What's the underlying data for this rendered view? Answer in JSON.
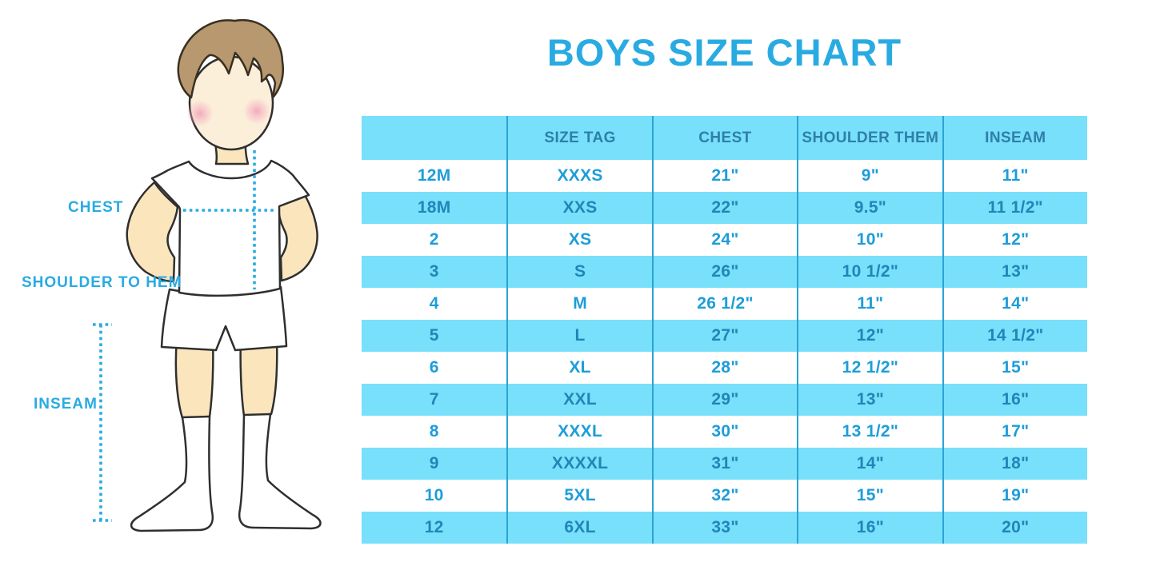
{
  "title": "BOYS SIZE CHART",
  "figure": {
    "labels": {
      "chest": "CHEST",
      "shoulder_to_hem": "SHOULDER TO HEM",
      "inseam": "INSEAM"
    }
  },
  "chart_data": {
    "type": "table",
    "title": "BOYS SIZE CHART",
    "columns": [
      "",
      "SIZE TAG",
      "CHEST",
      "SHOULDER THEM",
      "INSEAM"
    ],
    "rows": [
      [
        "12M",
        "XXXS",
        "21\"",
        "9\"",
        "11\""
      ],
      [
        "18M",
        "XXS",
        "22\"",
        "9.5\"",
        "11 1/2\""
      ],
      [
        "2",
        "XS",
        "24\"",
        "10\"",
        "12\""
      ],
      [
        "3",
        "S",
        "26\"",
        "10 1/2\"",
        "13\""
      ],
      [
        "4",
        "M",
        "26 1/2\"",
        "11\"",
        "14\""
      ],
      [
        "5",
        "L",
        "27\"",
        "12\"",
        "14 1/2\""
      ],
      [
        "6",
        "XL",
        "28\"",
        "12 1/2\"",
        "15\""
      ],
      [
        "7",
        "XXL",
        "29\"",
        "13\"",
        "16\""
      ],
      [
        "8",
        "XXXL",
        "30\"",
        "13 1/2\"",
        "17\""
      ],
      [
        "9",
        "XXXXL",
        "31\"",
        "14\"",
        "18\""
      ],
      [
        "10",
        "5XL",
        "32\"",
        "15\"",
        "19\""
      ],
      [
        "12",
        "6XL",
        "33\"",
        "16\"",
        "20\""
      ]
    ],
    "layout": {
      "header_background": "#78E0FA",
      "alternating_rows": true,
      "grid": "vertical-dividers-only"
    }
  },
  "colors": {
    "accent_blue": "#29ABE2",
    "row_alt_cyan": "#78E0FA",
    "header_text": "#2E7FA9",
    "cell_text": "#1D9DD9",
    "cell_text_on_cyan": "#1F86B8",
    "divider": "#2BA3D5"
  }
}
